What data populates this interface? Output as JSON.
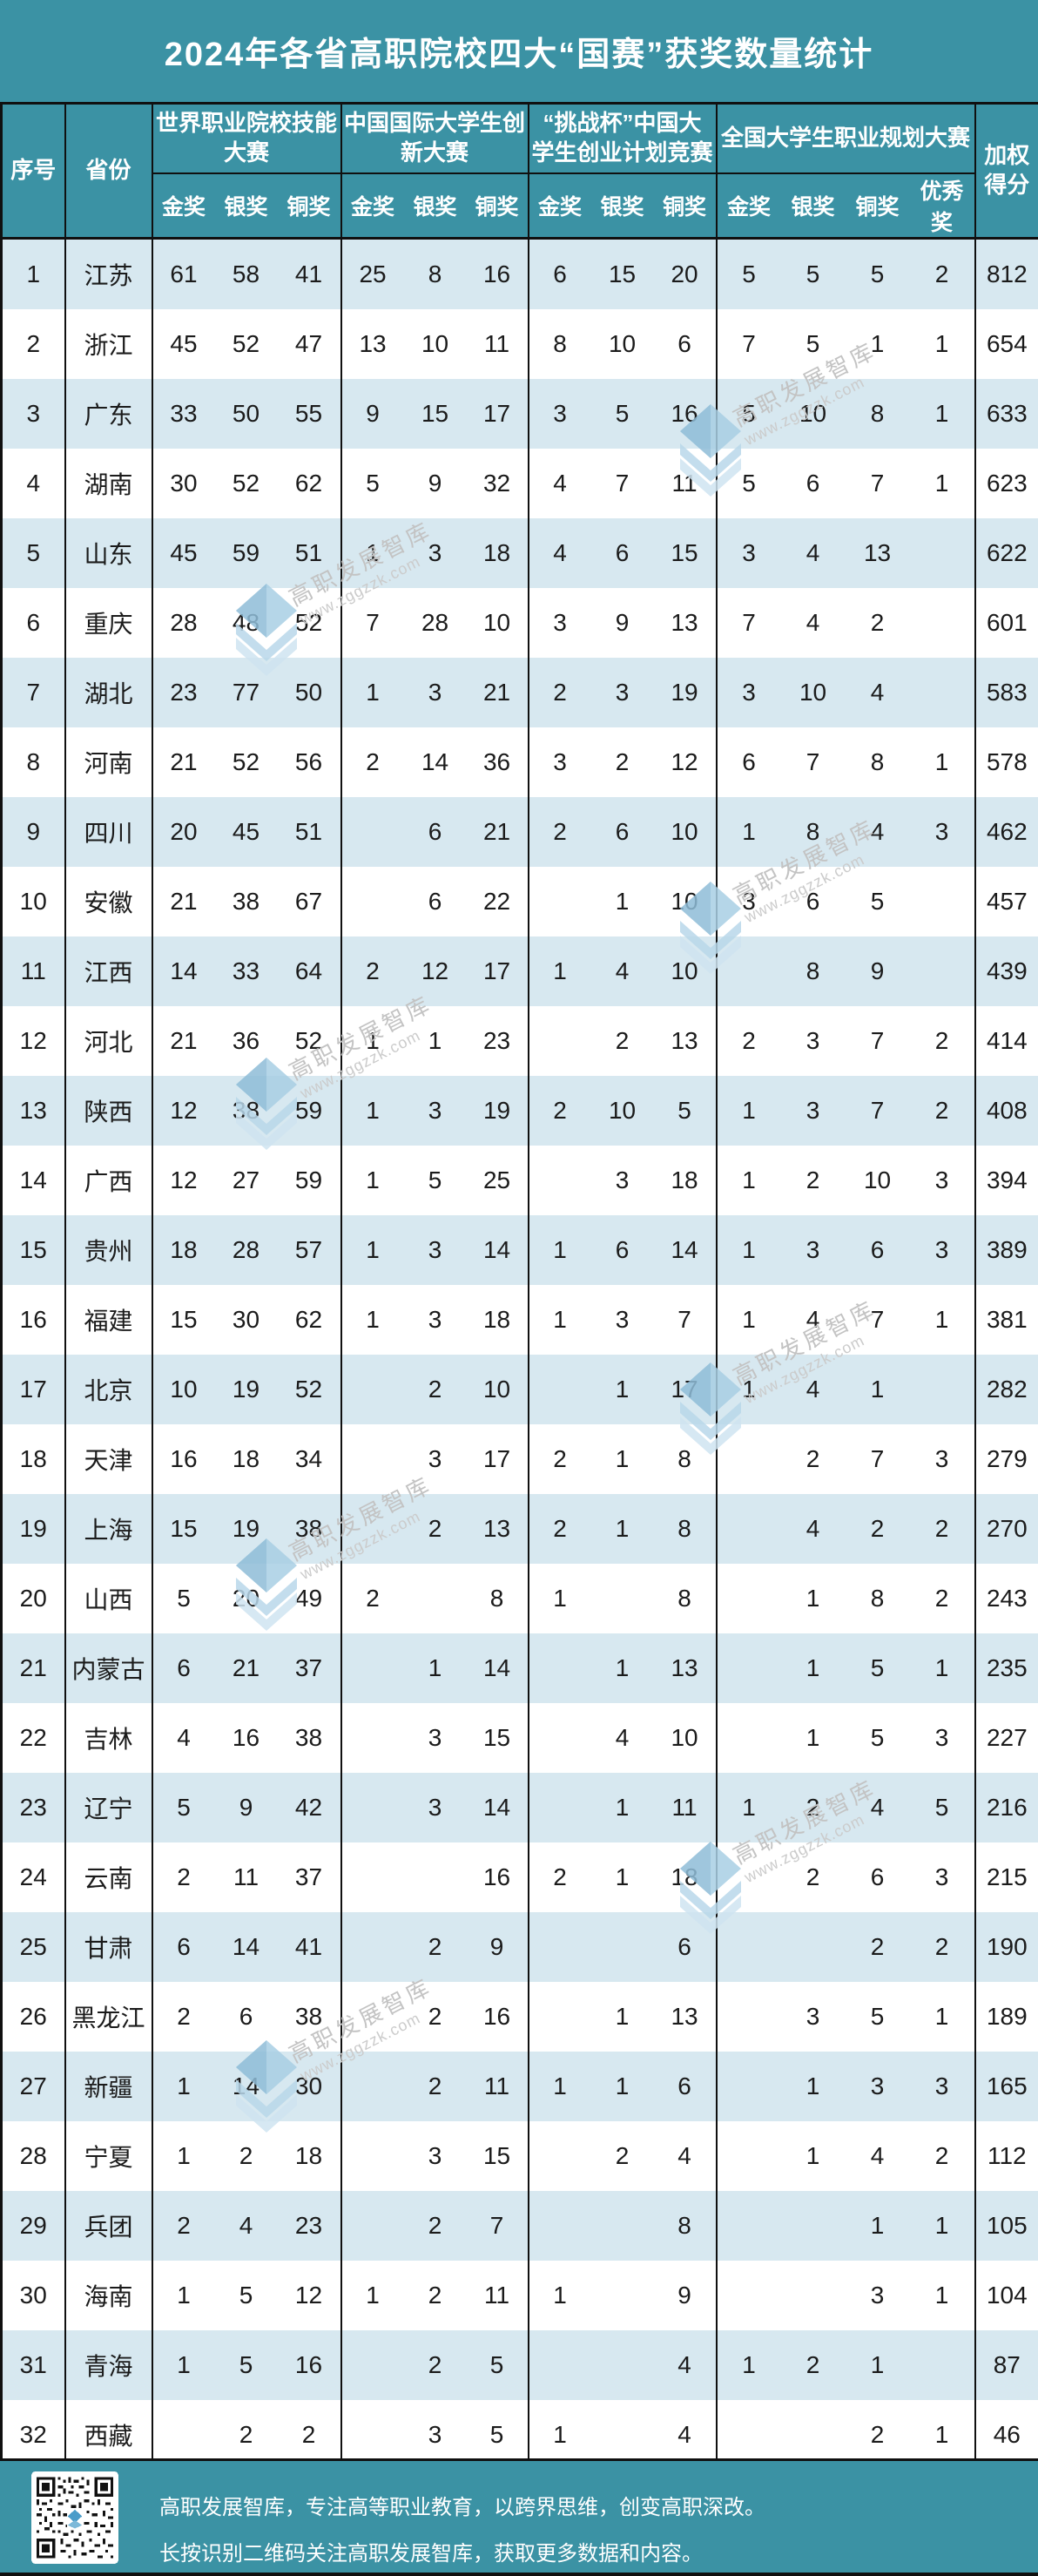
{
  "title": "2024年各省高职院校四大“国赛”获奖数量统计",
  "colors": {
    "teal": "#3b92a4",
    "row_alt": "#d7e8f0",
    "row_plain": "#ffffff",
    "border": "#101010",
    "watermark_gray": "#c3c3c3",
    "watermark_blue": "#a9cfe4"
  },
  "header": {
    "col_index": "序号",
    "col_province": "省份",
    "col_score": "加权\n得分",
    "groups": [
      {
        "label": "世界职业院校技能\n大赛",
        "medals": [
          "金奖",
          "银奖",
          "铜奖"
        ]
      },
      {
        "label": "中国国际大学生创\n新大赛",
        "medals": [
          "金奖",
          "银奖",
          "铜奖"
        ]
      },
      {
        "label": "“挑战杯”中国大\n学生创业计划竞赛",
        "medals": [
          "金奖",
          "银奖",
          "铜奖"
        ]
      },
      {
        "label": "全国大学生职业规划大赛",
        "medals": [
          "金奖",
          "银奖",
          "铜奖",
          "优秀奖"
        ]
      }
    ]
  },
  "chart_data": {
    "type": "table",
    "title": "2024年各省高职院校四大“国赛”获奖数量统计",
    "column_groups": [
      "世界职业院校技能大赛",
      "中国国际大学生创新大赛",
      "“挑战杯”中国大学生创业计划竞赛",
      "全国大学生职业规划大赛"
    ],
    "columns": [
      "序号",
      "省份",
      "金奖",
      "银奖",
      "铜奖",
      "金奖",
      "银奖",
      "铜奖",
      "金奖",
      "银奖",
      "铜奖",
      "金奖",
      "银奖",
      "铜奖",
      "优秀奖",
      "加权得分"
    ],
    "rows": [
      [
        1,
        "江苏",
        61,
        58,
        41,
        25,
        8,
        16,
        6,
        15,
        20,
        5,
        5,
        5,
        2,
        812
      ],
      [
        2,
        "浙江",
        45,
        52,
        47,
        13,
        10,
        11,
        8,
        10,
        6,
        7,
        5,
        1,
        1,
        654
      ],
      [
        3,
        "广东",
        33,
        50,
        55,
        9,
        15,
        17,
        3,
        5,
        16,
        5,
        10,
        8,
        1,
        633
      ],
      [
        4,
        "湖南",
        30,
        52,
        62,
        5,
        9,
        32,
        4,
        7,
        11,
        5,
        6,
        7,
        1,
        623
      ],
      [
        5,
        "山东",
        45,
        59,
        51,
        1,
        3,
        18,
        4,
        6,
        15,
        3,
        4,
        13,
        "",
        622
      ],
      [
        6,
        "重庆",
        28,
        48,
        52,
        7,
        28,
        10,
        3,
        9,
        13,
        7,
        4,
        2,
        "",
        601
      ],
      [
        7,
        "湖北",
        23,
        77,
        50,
        1,
        3,
        21,
        2,
        3,
        19,
        3,
        10,
        4,
        "",
        583
      ],
      [
        8,
        "河南",
        21,
        52,
        56,
        2,
        14,
        36,
        3,
        2,
        12,
        6,
        7,
        8,
        1,
        578
      ],
      [
        9,
        "四川",
        20,
        45,
        51,
        "",
        6,
        21,
        2,
        6,
        10,
        1,
        8,
        4,
        3,
        462
      ],
      [
        10,
        "安徽",
        21,
        38,
        67,
        "",
        6,
        22,
        "",
        1,
        10,
        3,
        6,
        5,
        "",
        457
      ],
      [
        11,
        "江西",
        14,
        33,
        64,
        2,
        12,
        17,
        1,
        4,
        10,
        "",
        8,
        9,
        "",
        439
      ],
      [
        12,
        "河北",
        21,
        36,
        52,
        1,
        1,
        23,
        "",
        2,
        13,
        2,
        3,
        7,
        2,
        414
      ],
      [
        13,
        "陕西",
        12,
        38,
        59,
        1,
        3,
        19,
        2,
        10,
        5,
        1,
        3,
        7,
        2,
        408
      ],
      [
        14,
        "广西",
        12,
        27,
        59,
        1,
        5,
        25,
        "",
        3,
        18,
        1,
        2,
        10,
        3,
        394
      ],
      [
        15,
        "贵州",
        18,
        28,
        57,
        1,
        3,
        14,
        1,
        6,
        14,
        1,
        3,
        6,
        3,
        389
      ],
      [
        16,
        "福建",
        15,
        30,
        62,
        1,
        3,
        18,
        1,
        3,
        7,
        1,
        4,
        7,
        1,
        381
      ],
      [
        17,
        "北京",
        10,
        19,
        52,
        "",
        2,
        10,
        "",
        1,
        17,
        1,
        4,
        1,
        "",
        282
      ],
      [
        18,
        "天津",
        16,
        18,
        34,
        "",
        3,
        17,
        2,
        1,
        8,
        "",
        2,
        7,
        3,
        279
      ],
      [
        19,
        "上海",
        15,
        19,
        38,
        "",
        2,
        13,
        2,
        1,
        8,
        "",
        4,
        2,
        2,
        270
      ],
      [
        20,
        "山西",
        5,
        20,
        49,
        2,
        "",
        8,
        1,
        "",
        8,
        "",
        1,
        8,
        2,
        243
      ],
      [
        21,
        "内蒙古",
        6,
        21,
        37,
        "",
        1,
        14,
        "",
        1,
        13,
        "",
        1,
        5,
        1,
        235
      ],
      [
        22,
        "吉林",
        4,
        16,
        38,
        "",
        3,
        15,
        "",
        4,
        10,
        "",
        1,
        5,
        3,
        227
      ],
      [
        23,
        "辽宁",
        5,
        9,
        42,
        "",
        3,
        14,
        "",
        1,
        11,
        1,
        2,
        4,
        5,
        216
      ],
      [
        24,
        "云南",
        2,
        11,
        37,
        "",
        "",
        16,
        2,
        1,
        18,
        "",
        2,
        6,
        3,
        215
      ],
      [
        25,
        "甘肃",
        6,
        14,
        41,
        "",
        2,
        9,
        "",
        "",
        6,
        "",
        "",
        2,
        2,
        190
      ],
      [
        26,
        "黑龙江",
        2,
        6,
        38,
        "",
        2,
        16,
        "",
        1,
        13,
        "",
        3,
        5,
        1,
        189
      ],
      [
        27,
        "新疆",
        1,
        14,
        30,
        "",
        2,
        11,
        1,
        1,
        6,
        "",
        1,
        3,
        3,
        165
      ],
      [
        28,
        "宁夏",
        1,
        2,
        18,
        "",
        3,
        15,
        "",
        2,
        4,
        "",
        1,
        4,
        2,
        112
      ],
      [
        29,
        "兵团",
        2,
        4,
        23,
        "",
        2,
        7,
        "",
        "",
        8,
        "",
        "",
        1,
        1,
        105
      ],
      [
        30,
        "海南",
        1,
        5,
        12,
        1,
        2,
        11,
        1,
        "",
        9,
        "",
        "",
        3,
        1,
        104
      ],
      [
        31,
        "青海",
        1,
        5,
        16,
        "",
        2,
        5,
        "",
        "",
        4,
        1,
        2,
        1,
        "",
        87
      ],
      [
        32,
        "西藏",
        "",
        2,
        2,
        "",
        3,
        5,
        1,
        "",
        4,
        "",
        "",
        2,
        1,
        46
      ]
    ]
  },
  "watermark": {
    "line1": "高职发展智库",
    "line2": "www.zggzzk.com"
  },
  "footer": {
    "line1": "高职发展智库，专注高等职业教育，以跨界思维，创变高职深改。",
    "line2": "长按识别二维码关注高职发展智库，获取更多数据和内容。"
  }
}
